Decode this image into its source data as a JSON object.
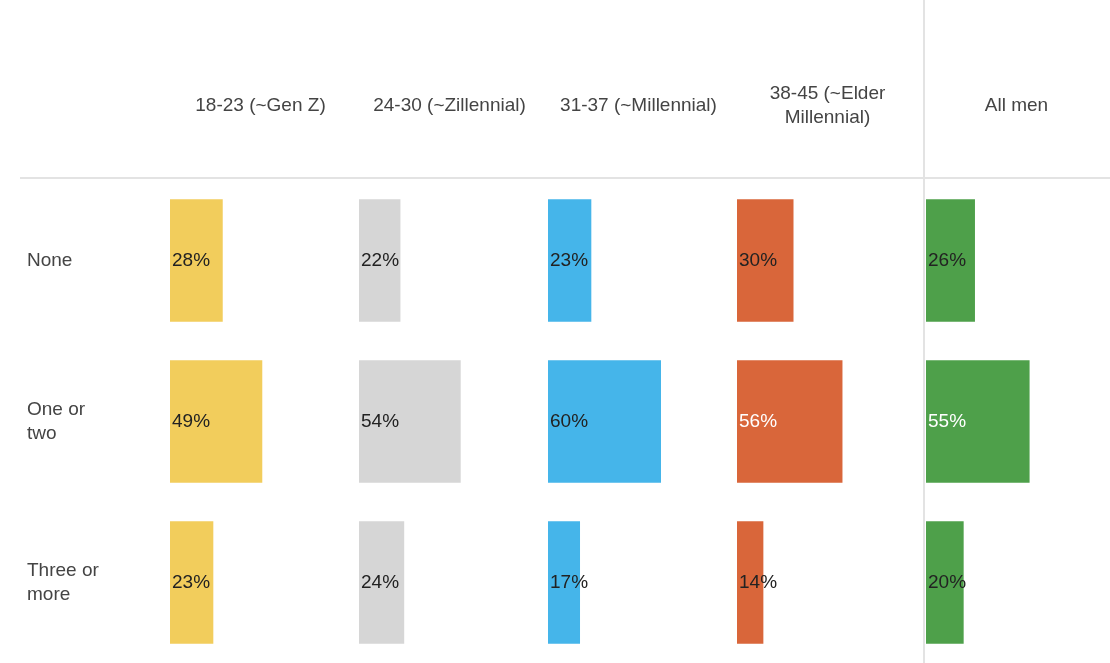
{
  "chart_data": [
    {
      "type": "bar",
      "orientation": "horizontal",
      "title": "18-23 (~Gen Z)",
      "categories": [
        "None",
        "One or two",
        "Three or more"
      ],
      "values": [
        28,
        49,
        23
      ],
      "value_labels": [
        "28%",
        "49%",
        "23%"
      ],
      "color": "#f2cd5c",
      "tick_labels": "y"
    },
    {
      "type": "bar",
      "orientation": "horizontal",
      "title": "24-30 (~Zillennial)",
      "categories": [
        null,
        null,
        null
      ],
      "values": [
        22,
        54,
        24
      ],
      "value_labels": [
        "22%",
        "54%",
        "24%"
      ],
      "color": "#d6d6d6",
      "tick_labels": false
    },
    {
      "type": "bar",
      "orientation": "horizontal",
      "title": "31-37 (~Millennial)",
      "categories": [
        null,
        null,
        null
      ],
      "values": [
        23,
        60,
        17
      ],
      "value_labels": [
        "23%",
        "60%",
        "17%"
      ],
      "color": "#45b5ea",
      "tick_labels": false
    },
    {
      "type": "bar",
      "orientation": "horizontal",
      "title": "38-45 (~Elder Millennial)",
      "categories": [
        null,
        null,
        null
      ],
      "values": [
        30,
        56,
        14
      ],
      "value_labels": [
        "30%",
        "56%",
        "14%"
      ],
      "color": "#d9663a",
      "tick_labels": false
    },
    {
      "type": "bar",
      "orientation": "horizontal",
      "title": "All men",
      "categories": [
        null,
        null,
        null
      ],
      "values": [
        26,
        55,
        20
      ],
      "value_labels": [
        "26%",
        "55%",
        "20%"
      ],
      "color": "#4ea04a",
      "tick_labels": false
    }
  ]
}
